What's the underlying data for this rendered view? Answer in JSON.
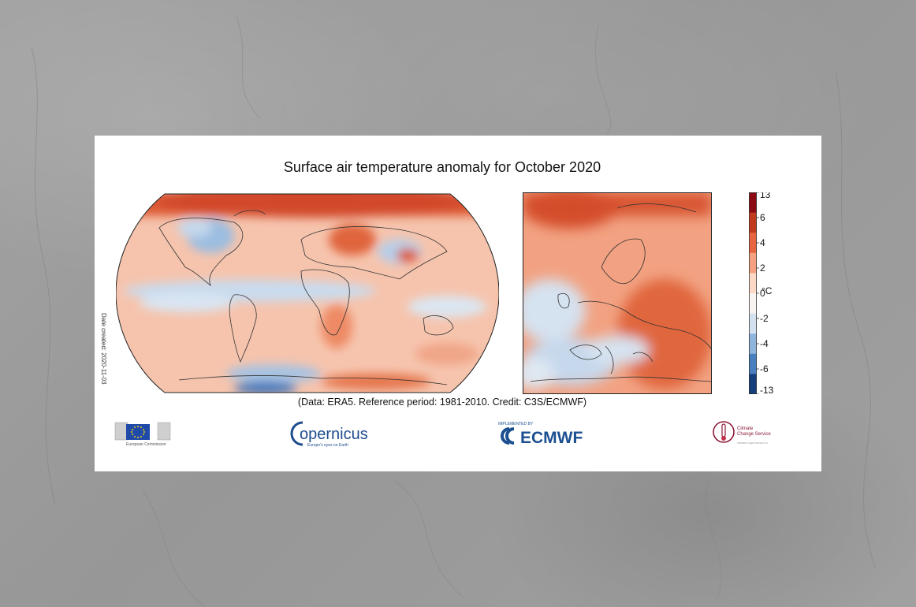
{
  "title": "Surface air temperature anomaly for October 2020",
  "footnote": "(Data: ERA5.  Reference period: 1981-2010.  Credit: C3S/ECMWF)",
  "date_created": "Date created: 2020-11-03",
  "colorbar": {
    "unit": "°C",
    "ticks": [
      "13",
      "6",
      "4",
      "2",
      "0",
      "-2",
      "-4",
      "-6",
      "-13"
    ],
    "colors": [
      "#8b0a14",
      "#c23a1e",
      "#e8663f",
      "#f5a07e",
      "#fbd9c6",
      "#f7f4f2",
      "#d4e2f0",
      "#90b5dc",
      "#4a7fbf",
      "#153f7a"
    ]
  },
  "logos": {
    "eu": "European Commission",
    "copernicus": "opernicus",
    "copernicus_sub": "Europe's eyes on Earth",
    "ecmwf_top": "IMPLEMENTED BY",
    "ecmwf": "ECMWF",
    "c3s_line1": "Climate",
    "c3s_line2": "Change Service",
    "c3s_line3": "climate.copernicus.eu"
  },
  "maps": {
    "global": "global-anomaly-map",
    "europe": "europe-anomaly-map"
  }
}
